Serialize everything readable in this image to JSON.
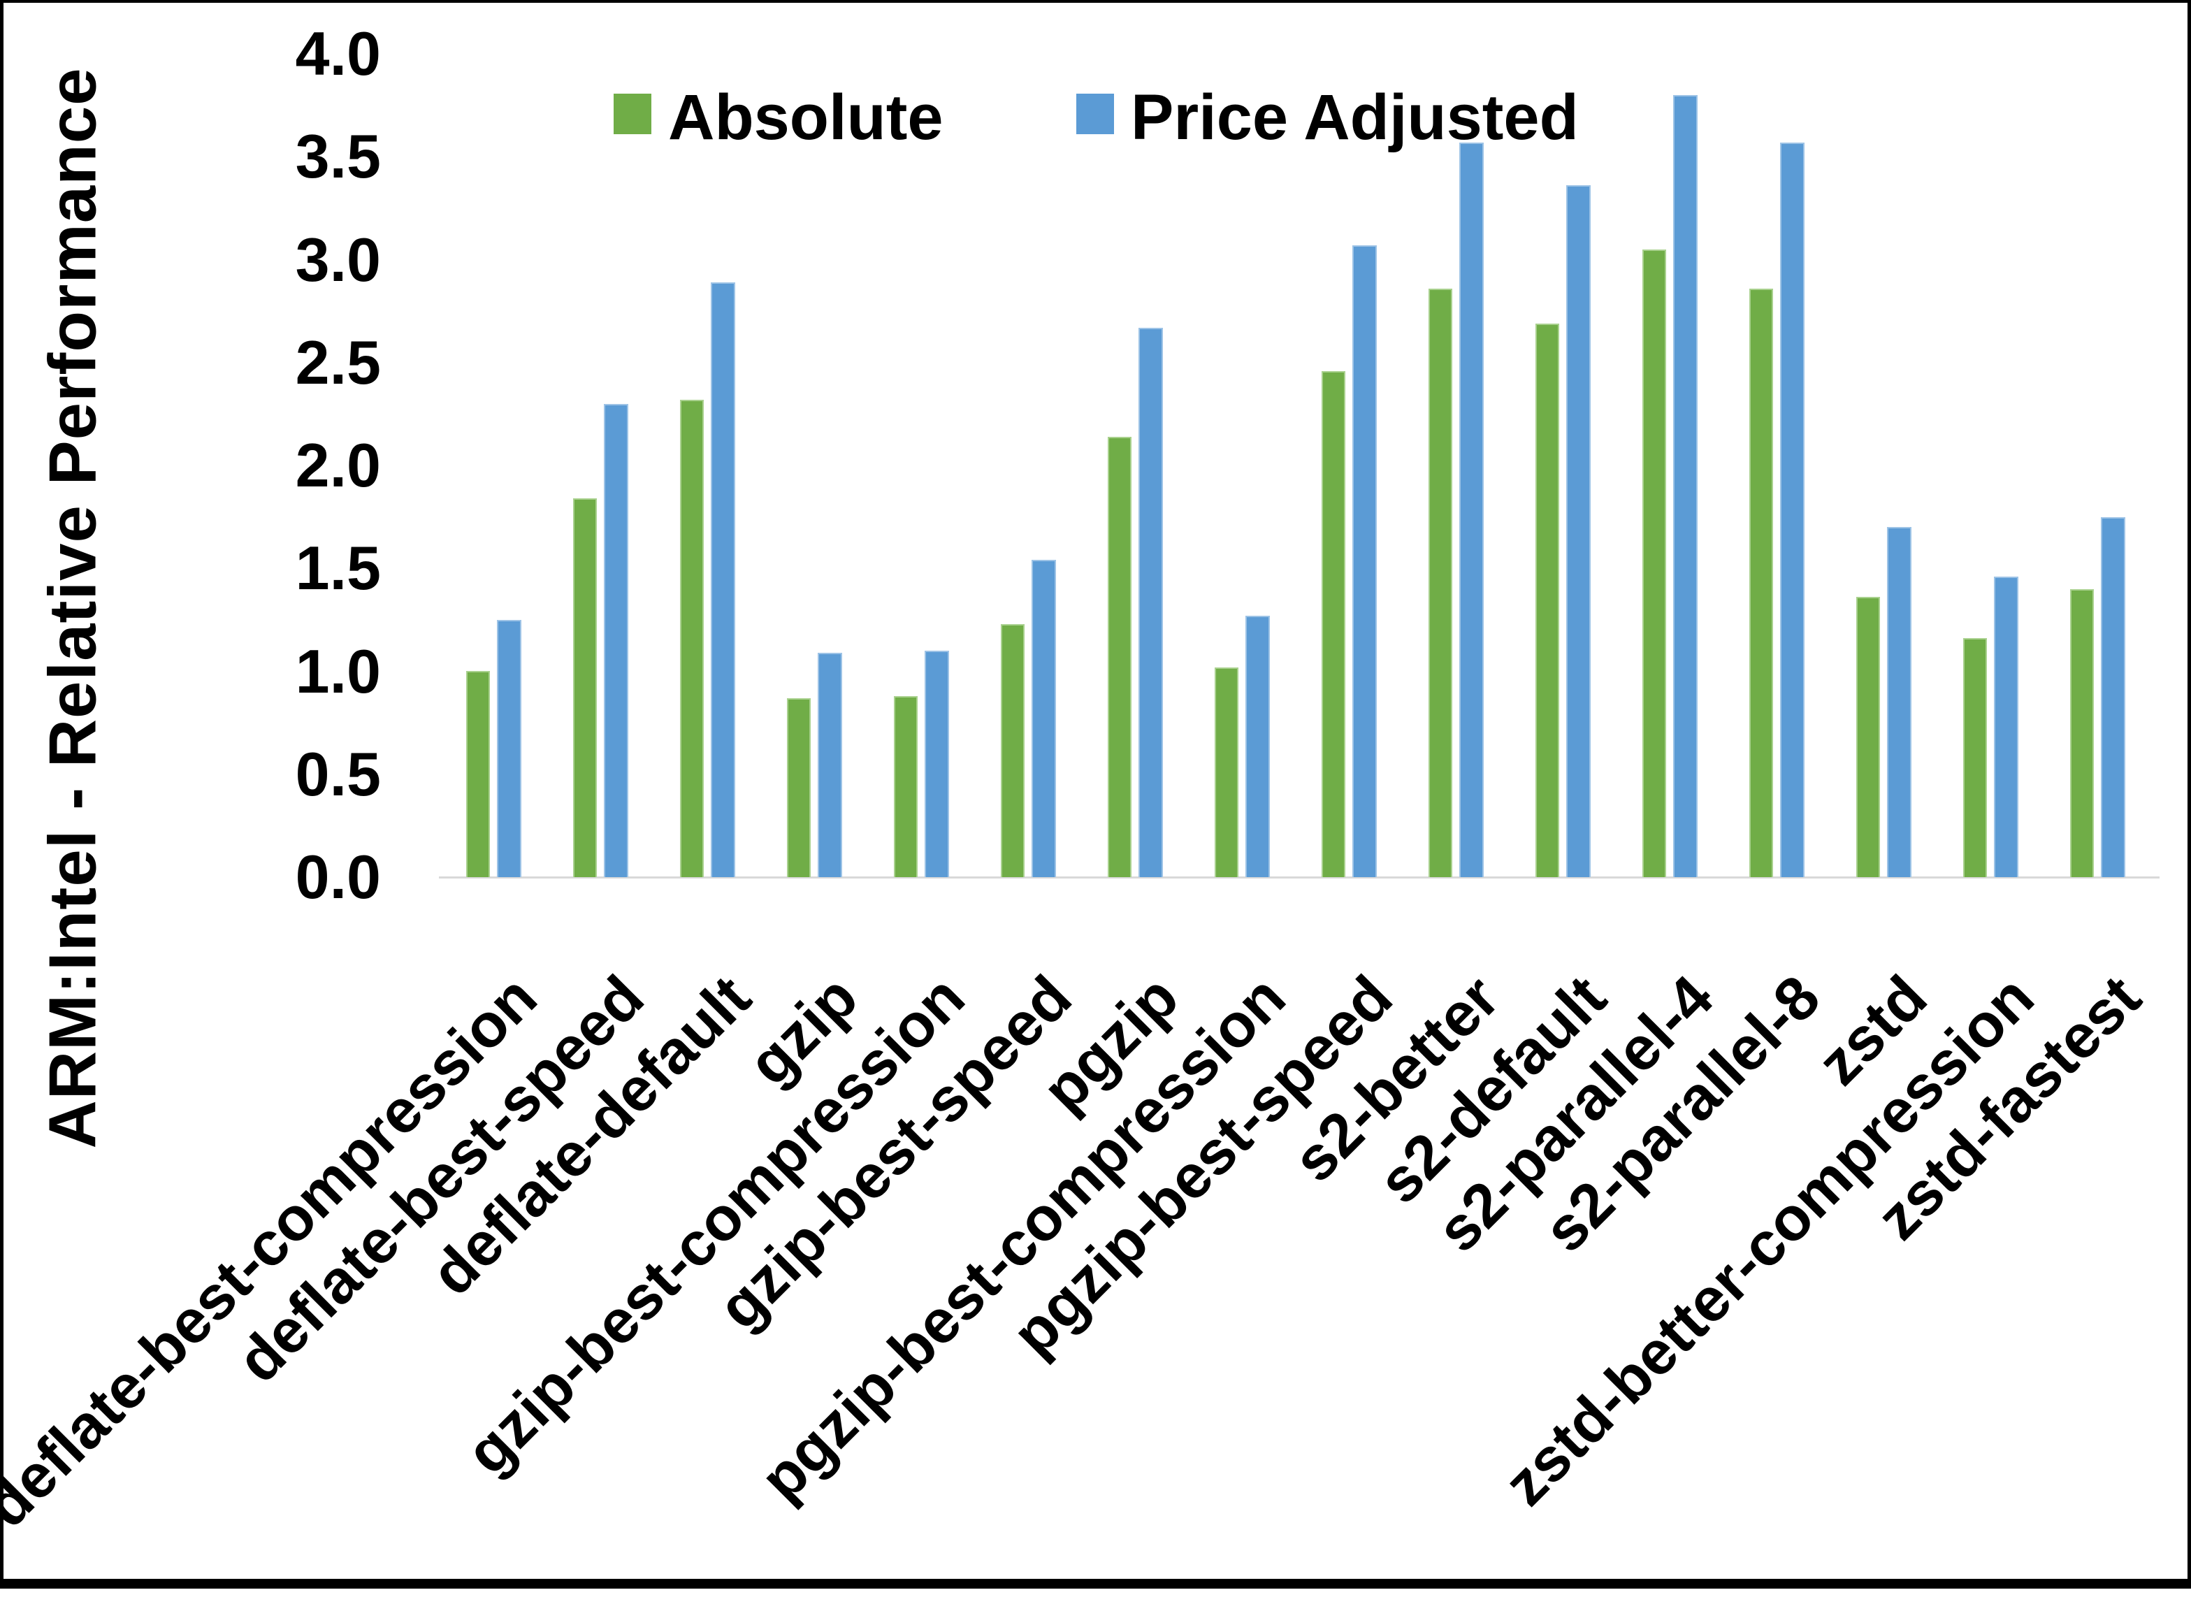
{
  "chart_data": {
    "type": "bar",
    "title": "",
    "xlabel": "",
    "ylabel": "ARM:Intel - Relative Performance",
    "ylim": [
      0.0,
      4.0
    ],
    "ytick_step": 0.5,
    "ytick_labels": [
      "0.0",
      "0.5",
      "1.0",
      "1.5",
      "2.0",
      "2.5",
      "3.0",
      "3.5",
      "4.0"
    ],
    "grid": false,
    "legend_position": "top-center",
    "categories": [
      "deflate-best-compression",
      "deflate-best-speed",
      "deflate-default",
      "gzip",
      "gzip-best-compression",
      "gzip-best-speed",
      "pgzip",
      "pgzip-best-compression",
      "pgzip-best-speed",
      "s2-better",
      "s2-default",
      "s2-parallel-4",
      "s2-parallel-8",
      "zstd",
      "zstd-better-compression",
      "zstd-fastest"
    ],
    "series": [
      {
        "name": "Absolute",
        "color": "#70AD47",
        "edge_color": "#A9D18E",
        "values": [
          1.0,
          1.84,
          2.32,
          0.87,
          0.88,
          1.23,
          2.14,
          1.02,
          2.46,
          2.86,
          2.69,
          3.05,
          2.86,
          1.36,
          1.16,
          1.4
        ]
      },
      {
        "name": "Price Adjusted",
        "color": "#5B9BD5",
        "edge_color": "#9DC3E6",
        "values": [
          1.25,
          2.3,
          2.89,
          1.09,
          1.1,
          1.54,
          2.67,
          1.27,
          3.07,
          3.57,
          3.36,
          3.8,
          3.57,
          1.7,
          1.46,
          1.75
        ]
      }
    ]
  },
  "colors": {
    "background": "#FFFFFF",
    "text": "#000000",
    "axis_line": "#D9D9D9",
    "border": "#000000"
  }
}
